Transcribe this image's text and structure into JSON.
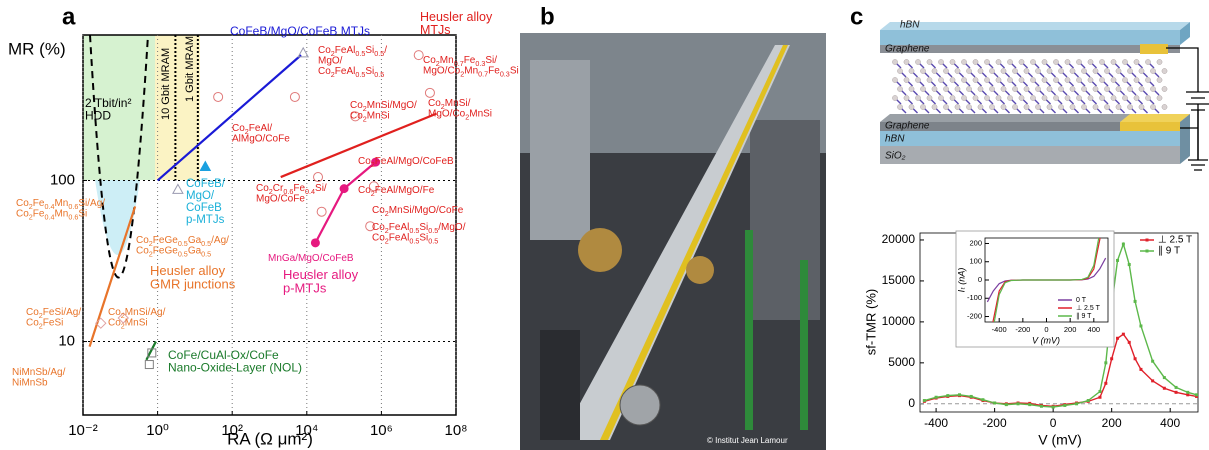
{
  "panel_labels": [
    "a",
    "b",
    "c"
  ],
  "chart_data": [
    {
      "type": "line",
      "x_scale": "log",
      "y_scale": "log",
      "x_label": "RA (Ω μm²)",
      "y_label": "MR (%)",
      "xlim": [
        0.01,
        100000000
      ],
      "ylim": [
        3.5,
        800
      ],
      "xticks": [
        {
          "value": 0.01,
          "label": "10⁻²"
        },
        {
          "value": 1,
          "label": "10⁰"
        },
        {
          "value": 100,
          "label": "10²"
        },
        {
          "value": 10000,
          "label": "10⁴"
        },
        {
          "value": 1000000,
          "label": "10⁶"
        },
        {
          "value": 100000000,
          "label": "10⁸"
        }
      ],
      "yticks": [
        10,
        100
      ],
      "grid": true,
      "reference_x": [
        3,
        12
      ],
      "series": [
        {
          "color": "#1a1ad6",
          "x": [
            1,
            7000
          ],
          "values": [
            100,
            600
          ]
        },
        {
          "color": "#e0201e",
          "x": [
            2000,
            30000000
          ],
          "values": [
            105,
            260
          ]
        },
        {
          "color": "#e6197f",
          "x": [
            17000,
            100000,
            700000
          ],
          "values": [
            41,
            89,
            130
          ],
          "marker": "filled-circle"
        },
        {
          "color": "#e8742a",
          "x": [
            0.015,
            0.25
          ],
          "values": [
            9.3,
            69
          ]
        },
        {
          "color": "#1a7a2a",
          "x": [
            0.5,
            0.9
          ],
          "values": [
            7.7,
            10
          ]
        }
      ],
      "markers": [
        {
          "color": "#e07a7a",
          "marker": "open-circle",
          "x": [
            42,
            4800,
            20000000,
            20000,
            25000,
            630000,
            500000,
            10000000,
            200000
          ],
          "values": [
            330,
            330,
            350,
            105,
            64,
            92,
            52,
            600,
            250
          ]
        },
        {
          "color": "#9a9ab0",
          "marker": "open-triangle",
          "x": [
            3.5,
            8000
          ],
          "values": [
            88,
            620
          ]
        },
        {
          "color": "#1aa0e0",
          "marker": "filled-triangle",
          "x": [
            19
          ],
          "values": [
            122
          ]
        },
        {
          "color": "#808080",
          "marker": "open-square",
          "x": [
            0.6,
            0.7
          ],
          "values": [
            7.2,
            8.5
          ]
        },
        {
          "color": "#e0a0a0",
          "marker": "open-diamond",
          "x": [
            0.03,
            0.12
          ],
          "values": [
            13,
            14
          ]
        }
      ],
      "annotations": [
        {
          "lines": [
            "CoFeB/MgO/CoFeB MTJs"
          ],
          "color": "#1a1ad6"
        },
        {
          "lines": [
            "Heusler alloy",
            "MTJs"
          ],
          "color": "#e0201e"
        },
        {
          "lines": [
            "Co2FeAl0.5Si0.5/",
            "MgO/",
            "Co2FeAl0.5Si0.5"
          ],
          "color": "#e0201e"
        },
        {
          "lines": [
            "Co2Mn0.7Fe0.3Si/",
            "MgO/Co2Mn0.7Fe0.3Si"
          ],
          "color": "#e0201e"
        },
        {
          "lines": [
            "Co2MnSi/MgO/",
            "Co2MnSi"
          ],
          "color": "#e0201e"
        },
        {
          "lines": [
            "Co2MnSi/",
            "MgO/Co2MnSi"
          ],
          "color": "#e0201e"
        },
        {
          "lines": [
            "Co2FeAl/",
            "AlMgO/CoFe"
          ],
          "color": "#e0201e"
        },
        {
          "lines": [
            "Co2Cr0.6Fe0.4Si/",
            "MgO/CoFe"
          ],
          "color": "#e0201e"
        },
        {
          "lines": [
            "Co2FeAl/MgO/CoFeB"
          ],
          "color": "#e0201e"
        },
        {
          "lines": [
            "Co2FeAl/MgO/Fe"
          ],
          "color": "#e0201e"
        },
        {
          "lines": [
            "Co2MnSi/MgO/CoFe"
          ],
          "color": "#e0201e"
        },
        {
          "lines": [
            "Co2FeAl0.5Si0.5/MgO/",
            "Co2FeAl0.5Si0.5"
          ],
          "color": "#e0201e"
        },
        {
          "lines": [
            "MnGa/MgO/CoFeB"
          ],
          "color": "#e6197f"
        },
        {
          "lines": [
            "Heusler alloy",
            "p-MTJs"
          ],
          "color": "#e6197f"
        },
        {
          "lines": [
            "CoFeB/",
            "MgO/",
            "CoFeB",
            "p-MTJs"
          ],
          "color": "#1ab0d8"
        },
        {
          "lines": [
            "Co2Fe0.4Mn0.6Si/Ag/",
            "Co2Fe0.4Mn0.6Si"
          ],
          "color": "#e8742a"
        },
        {
          "lines": [
            "Co2FeGe0.5Ga0.5/Ag/",
            "Co2FeGe0.5Ga0.5"
          ],
          "color": "#e8742a"
        },
        {
          "lines": [
            "Heusler alloy",
            "GMR junctions"
          ],
          "color": "#e8742a"
        },
        {
          "lines": [
            "Co2FeSi/Ag/",
            "Co2FeSi"
          ],
          "color": "#e8742a"
        },
        {
          "lines": [
            "Co2MnSi/Ag/",
            "Co2MnSi"
          ],
          "color": "#e8742a"
        },
        {
          "lines": [
            "NiMnSb/Ag/",
            "NiMnSb"
          ],
          "color": "#e8742a"
        },
        {
          "lines": [
            "CoFe/CuAl-Ox/CoFe",
            "Nano-Oxide-Layer (NOL)"
          ],
          "color": "#1a7a2a"
        },
        {
          "lines": [
            "2 Tbit/in²",
            "HDD"
          ],
          "color": "#000000"
        },
        {
          "lines": [
            "10 Gbit MRAM"
          ],
          "color": "#000000"
        },
        {
          "lines": [
            "1 Gbit MRAM"
          ],
          "color": "#000000"
        }
      ]
    },
    {
      "type": "line",
      "x_label": "V (mV)",
      "y_label": "sf-TMR (%)",
      "xlim": [
        -455,
        495
      ],
      "ylim": [
        -1000,
        20850
      ],
      "xticks": [
        -400,
        -200,
        0,
        200,
        400
      ],
      "yticks": [
        0,
        5000,
        10000,
        15000,
        20000
      ],
      "zero_line": true,
      "legend": "upper right",
      "marker": "square",
      "x": [
        -440,
        -400,
        -360,
        -320,
        -280,
        -240,
        -200,
        -160,
        -120,
        -80,
        -40,
        0,
        40,
        80,
        120,
        160,
        180,
        200,
        220,
        240,
        260,
        280,
        300,
        340,
        380,
        420,
        460,
        490
      ],
      "series": [
        {
          "name": "⊥ 2.5 T",
          "color": "#e0202a",
          "values": [
            300,
            700,
            900,
            1000,
            800,
            400,
            100,
            0,
            100,
            50,
            -200,
            -300,
            -100,
            100,
            300,
            800,
            2500,
            5500,
            8000,
            8500,
            7500,
            5500,
            4200,
            2800,
            1900,
            1400,
            1100,
            900
          ]
        },
        {
          "name": "∥ 9 T",
          "color": "#5cb84a",
          "values": [
            400,
            800,
            1000,
            1100,
            900,
            500,
            100,
            -100,
            0,
            -100,
            -300,
            -400,
            -200,
            0,
            400,
            1500,
            5000,
            12000,
            17500,
            19500,
            17000,
            12500,
            9500,
            5200,
            3200,
            2000,
            1400,
            1100
          ]
        }
      ]
    },
    {
      "type": "line",
      "x_label": "V (mV)",
      "y_label": "Iₜ (nA)",
      "xlim": [
        -520,
        520
      ],
      "ylim": [
        -230,
        230
      ],
      "xticks": [
        -400,
        -200,
        0,
        200,
        400
      ],
      "yticks": [
        -200,
        -100,
        0,
        100,
        200
      ],
      "legend": "lower right",
      "x": [
        -500,
        -450,
        -400,
        -350,
        -300,
        -200,
        0,
        200,
        300,
        350,
        400,
        450,
        500
      ],
      "series": [
        {
          "name": "0 T",
          "color": "#7b3fa0",
          "values": [
            -120,
            -60,
            -20,
            -5,
            -1,
            0,
            0,
            0,
            1,
            5,
            20,
            60,
            120
          ]
        },
        {
          "name": "⊥ 2.5 T",
          "color": "#e0202a",
          "values": [
            -400,
            -220,
            -60,
            -10,
            -2,
            0,
            0,
            0,
            2,
            10,
            60,
            220,
            400
          ]
        },
        {
          "name": "∥ 9 T",
          "color": "#5cb84a",
          "values": [
            -450,
            -260,
            -80,
            -15,
            -3,
            0,
            0,
            0,
            3,
            15,
            80,
            260,
            450
          ]
        }
      ]
    }
  ],
  "photo": {
    "credit": "© Institut Jean Lamour"
  },
  "diagram": {
    "layers": [
      "hBN",
      "Graphene",
      "Graphene",
      "hBN",
      "SiO₂"
    ]
  }
}
